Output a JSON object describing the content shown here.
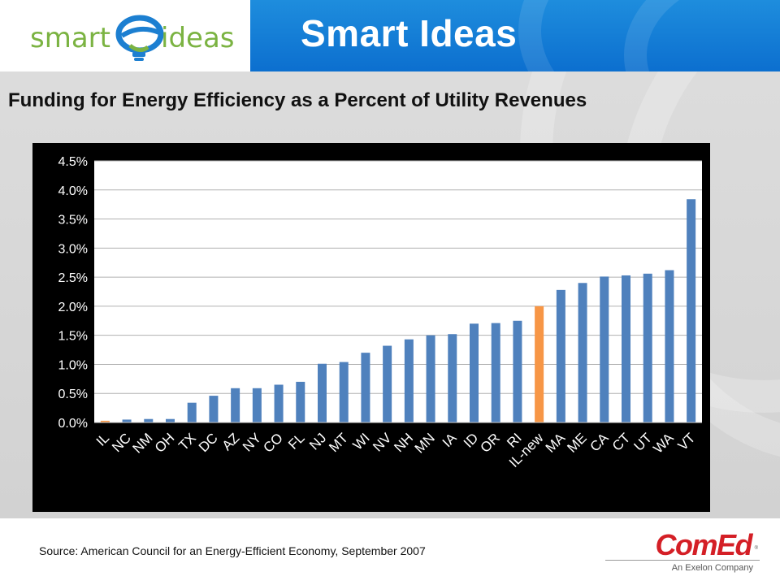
{
  "header": {
    "logo_text_left": "smart",
    "logo_text_right": "ideas",
    "title": "Smart Ideas",
    "colors": {
      "title_bar": "#0c6fcf",
      "logo_green": "#7bb342",
      "logo_blue": "#1c7fd1"
    }
  },
  "chart_title": "Funding for Energy Efficiency as a Percent of Utility Revenues",
  "chart_data": {
    "type": "bar",
    "title": "",
    "xlabel": "",
    "ylabel": "",
    "ylim": [
      0,
      4.5
    ],
    "y_ticks": [
      "0.0%",
      "0.5%",
      "1.0%",
      "1.5%",
      "2.0%",
      "2.5%",
      "3.0%",
      "3.5%",
      "4.0%",
      "4.5%"
    ],
    "y_tick_values": [
      0,
      0.5,
      1.0,
      1.5,
      2.0,
      2.5,
      3.0,
      3.5,
      4.0,
      4.5
    ],
    "grid": true,
    "categories": [
      "IL",
      "NC",
      "NM",
      "OH",
      "TX",
      "DC",
      "AZ",
      "NY",
      "CO",
      "FL",
      "NJ",
      "MT",
      "WI",
      "NV",
      "NH",
      "MN",
      "IA",
      "ID",
      "OR",
      "RI",
      "IL-new",
      "MA",
      "ME",
      "CA",
      "CT",
      "UT",
      "WA",
      "VT"
    ],
    "values": [
      0.03,
      0.05,
      0.06,
      0.06,
      0.34,
      0.46,
      0.59,
      0.59,
      0.65,
      0.7,
      1.01,
      1.04,
      1.2,
      1.32,
      1.43,
      1.5,
      1.52,
      1.7,
      1.71,
      1.75,
      2.0,
      2.28,
      2.4,
      2.51,
      2.53,
      2.56,
      2.62,
      3.84
    ],
    "highlighted": [
      "IL",
      "IL-new"
    ],
    "colors": {
      "bar": "#4f81bd",
      "highlight": "#f79646",
      "frame": "#000000",
      "plot_bg": "#ffffff",
      "gridline": "#b0b0b0"
    }
  },
  "source": "Source:  American Council for an Energy-Efficient Economy, September 2007",
  "footer_logo": {
    "name": "ComEd",
    "registered_mark": "®",
    "tagline": "An Exelon Company",
    "color": "#d41f26"
  }
}
